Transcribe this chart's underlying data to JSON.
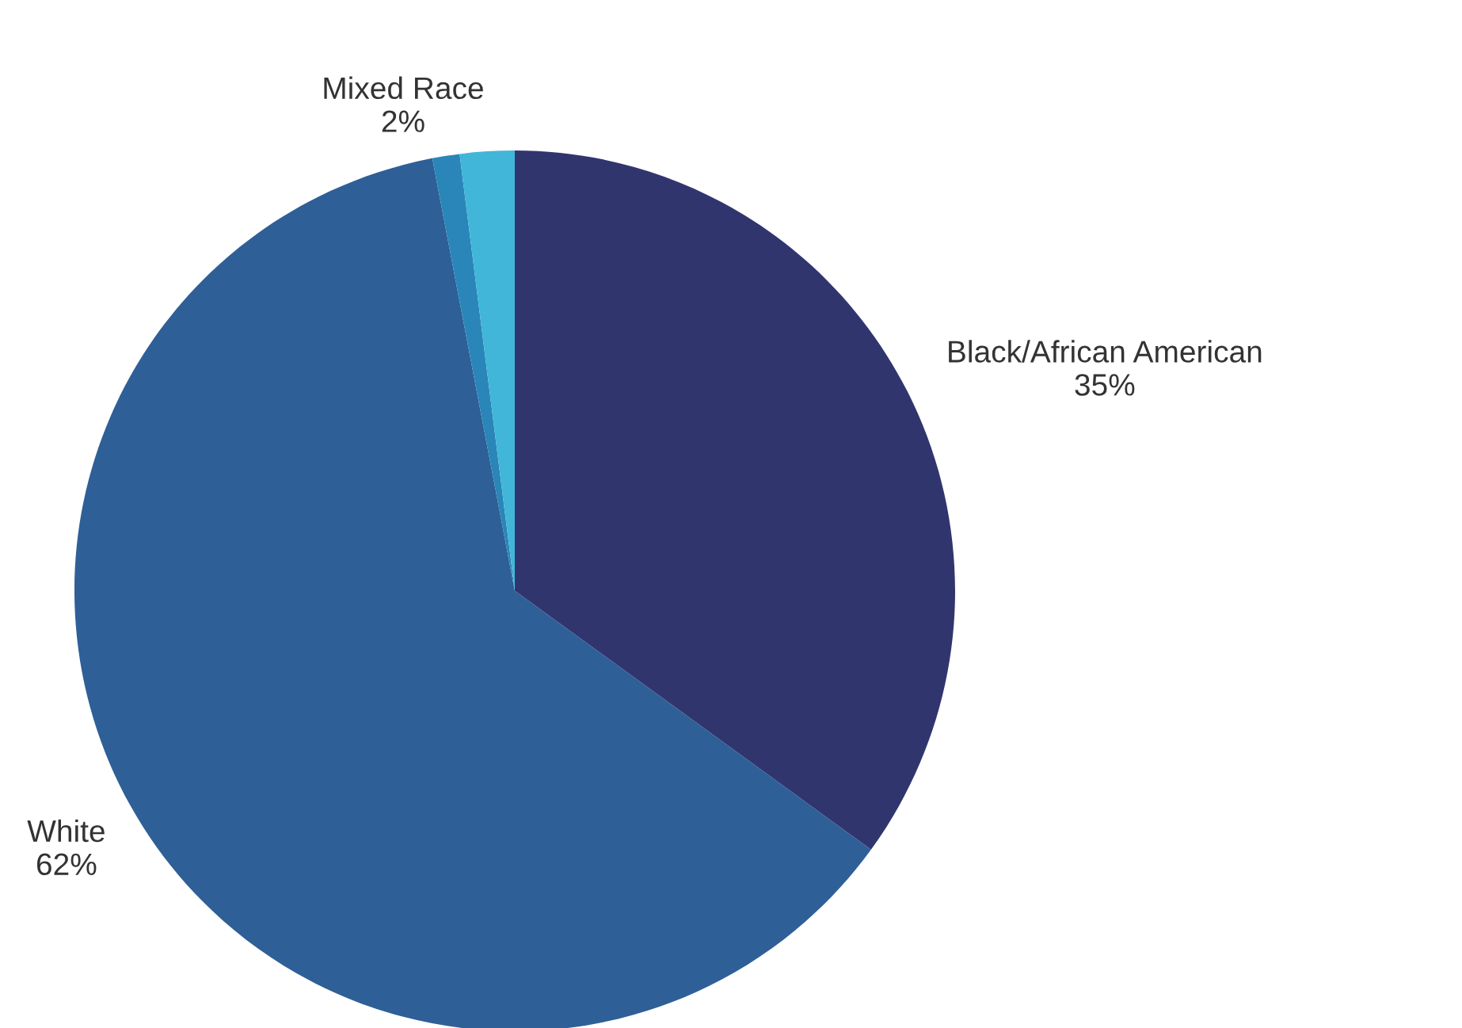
{
  "chart_data": {
    "type": "pie",
    "categories": [
      "Black/African American",
      "White",
      null,
      "Mixed Race"
    ],
    "values": [
      35,
      62,
      1,
      2
    ],
    "value_labels": [
      "35%",
      "62%",
      null,
      "2%"
    ],
    "colors": [
      "#31356e",
      "#2e5f97",
      "#2a86b8",
      "#41b6d8"
    ]
  }
}
